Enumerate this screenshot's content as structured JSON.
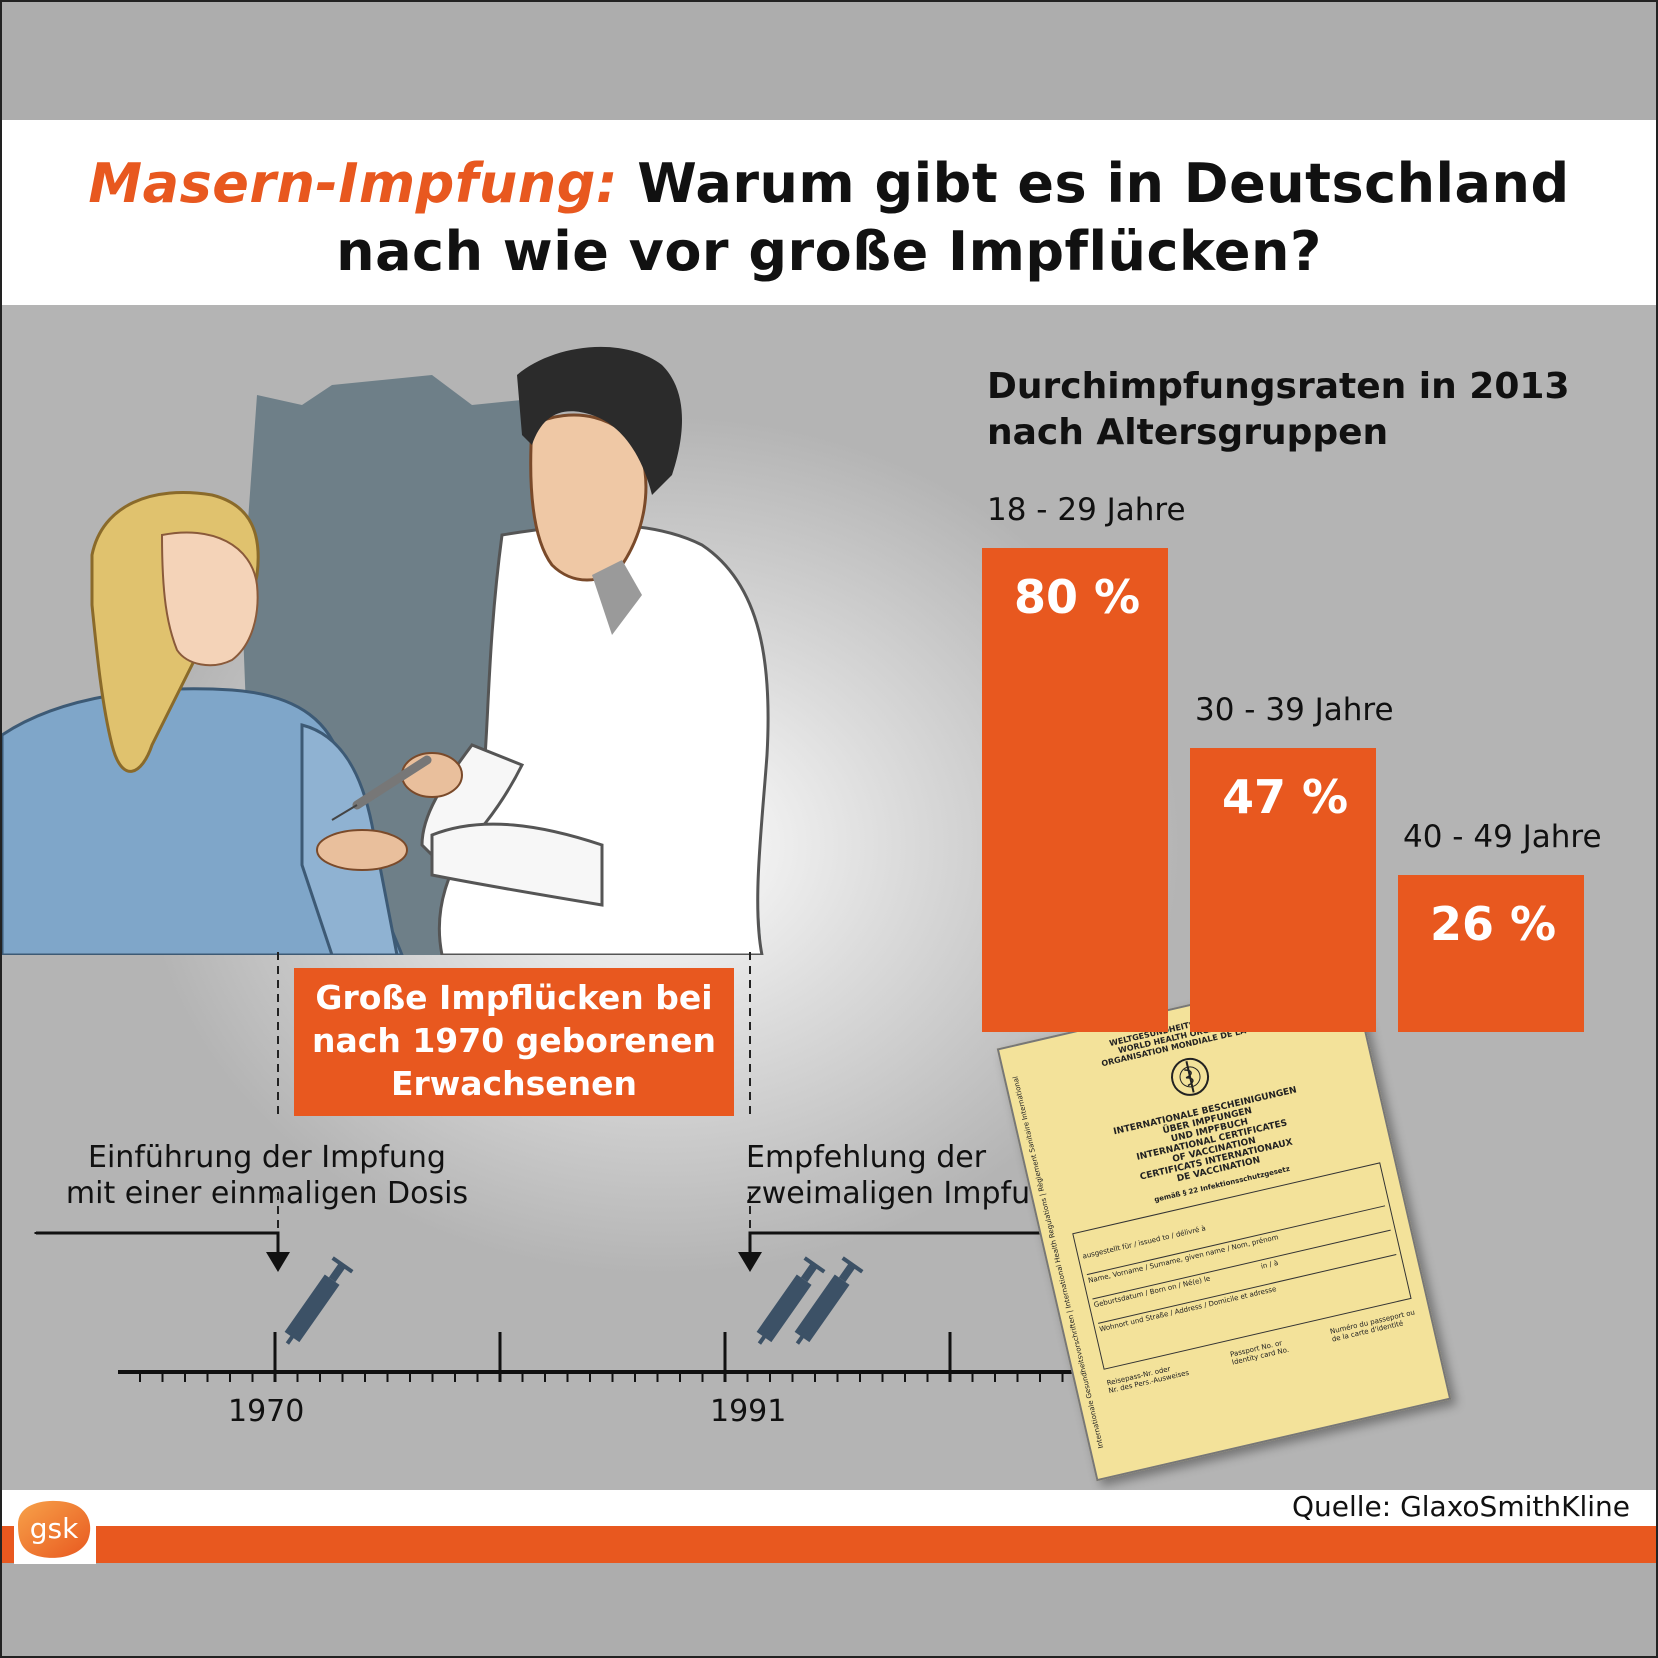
{
  "title": {
    "accent": "Masern-Impfung:",
    "line1_rest": "Warum gibt es in Deutschland",
    "line2": "nach wie vor große Impflücken?"
  },
  "chart_data": {
    "type": "bar",
    "title": "Durchimpfungsraten in 2013",
    "subtitle": "nach Altersgruppen",
    "categories": [
      "18 - 29 Jahre",
      "30 - 39 Jahre",
      "40 - 49 Jahre"
    ],
    "values": [
      80,
      47,
      26
    ],
    "value_labels": [
      "80 %",
      "47 %",
      "26 %"
    ],
    "unit": "%",
    "ylim": [
      0,
      100
    ],
    "grid": false,
    "color": "#e8581f"
  },
  "callout": {
    "line1": "Große Impflücken bei",
    "line2": "nach 1970 geborenen",
    "line3": "Erwachsenen"
  },
  "timeline": {
    "events": [
      {
        "line1": "Einführung der Impfung",
        "line2": "mit einer einmaligen Dosis",
        "year": "1970"
      },
      {
        "line1": "Empfehlung der",
        "line2": "zweimaligen Impfung",
        "year": "1991"
      }
    ]
  },
  "certificate": {
    "org_de": "WELTGESUNDHEITSORGANISATION",
    "org_en": "WORLD HEALTH ORGANIZATION",
    "org_fr": "ORGANISATION MONDIALE DE LA SANTÉ",
    "title_de1": "INTERNATIONALE BESCHEINIGUNGEN",
    "title_de2": "ÜBER IMPFUNGEN",
    "title_de3": "UND IMPFBUCH",
    "title_en1": "INTERNATIONAL CERTIFICATES",
    "title_en2": "OF VACCINATION",
    "title_fr1": "CERTIFICATS INTERNATIONAUX",
    "title_fr2": "DE VACCINATION",
    "law": "gemäß § 22 Infektionsschutzgesetz",
    "field1": "ausgestellt für / issued to / délivré à",
    "field2": "Name, Vorname / Surname, given name / Nom, prénom",
    "field3": "Geburtsdatum / Born on / Né(e) le",
    "field3b": "in / à",
    "field4": "Wohnort und Straße / Address / Domicile et adresse",
    "field5a": "Reisepass-Nr. oder",
    "field5b": "Nr. des Pers.-Ausweises",
    "field6a": "Passport No. or",
    "field6b": "Identity card No.",
    "field7a": "Numéro du passeport ou",
    "field7b": "de la carte d'identité",
    "side_text": "Internationale Gesundheitsvorschriften | International Health Regulations | Règlement Sanitaire International"
  },
  "colors": {
    "accent": "#e8581f",
    "background": "#adadad",
    "certificate": "#f3e29a"
  },
  "logo": {
    "text": "gsk"
  },
  "source": "Quelle: GlaxoSmithKline"
}
